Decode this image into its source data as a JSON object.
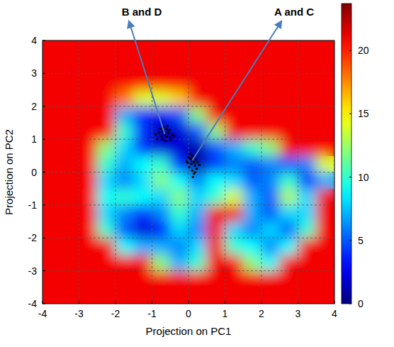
{
  "chart_data": {
    "type": "heatmap",
    "xlabel": "Projection on PC1",
    "ylabel": "Projection on PC2",
    "xlim": [
      -4,
      4
    ],
    "ylim": [
      -4,
      4
    ],
    "xticks": [
      -4,
      -3,
      -2,
      -1,
      0,
      1,
      2,
      3,
      4
    ],
    "yticks": [
      -4,
      -3,
      -2,
      -1,
      0,
      1,
      2,
      3,
      4
    ],
    "grid": true,
    "cells": {
      "x": [
        -3.75,
        -3.25,
        -2.75,
        -2.25,
        -1.75,
        -1.25,
        -0.75,
        -0.25,
        0.25,
        0.75,
        1.25,
        1.75,
        2.25,
        2.75,
        3.25,
        3.75
      ],
      "y": [
        -3.75,
        -3.25,
        -2.75,
        -2.25,
        -1.75,
        -1.25,
        -0.75,
        -0.25,
        0.25,
        0.75,
        1.25,
        1.75,
        2.25,
        2.75,
        3.25,
        3.75
      ],
      "values": [
        [
          21,
          21,
          21,
          21,
          21,
          21,
          21,
          21,
          21,
          21,
          21,
          21,
          21,
          21,
          21,
          21
        ],
        [
          21,
          21,
          21,
          21,
          21,
          21,
          21,
          21,
          21,
          21,
          21,
          21,
          21,
          21,
          21,
          21
        ],
        [
          21,
          21,
          21,
          21,
          21,
          21,
          12,
          7,
          10,
          21,
          21,
          12,
          9,
          21,
          21,
          21
        ],
        [
          21,
          21,
          21,
          21,
          9,
          7,
          7,
          6,
          8,
          21,
          10,
          9,
          6,
          9,
          21,
          21
        ],
        [
          21,
          21,
          21,
          10,
          5,
          2,
          3,
          8,
          6,
          21,
          8,
          6,
          8,
          5,
          10,
          21
        ],
        [
          21,
          21,
          21,
          8,
          6,
          4,
          6,
          10,
          7,
          21,
          21,
          7,
          5,
          8,
          8,
          21
        ],
        [
          21,
          21,
          21,
          9,
          10,
          9,
          8,
          12,
          8,
          10,
          14,
          7,
          5,
          13,
          8,
          21
        ],
        [
          21,
          21,
          21,
          8,
          6,
          8,
          12,
          9,
          6,
          9,
          8,
          5,
          6,
          10,
          4,
          7
        ],
        [
          21,
          21,
          21,
          10,
          7,
          9,
          10,
          4,
          0.5,
          4,
          6,
          5,
          6,
          5,
          6,
          14
        ],
        [
          21,
          21,
          21,
          12,
          8,
          4,
          2,
          2,
          1,
          5,
          7,
          10,
          12,
          21,
          21,
          21
        ],
        [
          21,
          21,
          21,
          21,
          10,
          4,
          1,
          2,
          5,
          12,
          21,
          21,
          21,
          21,
          21,
          21
        ],
        [
          21,
          21,
          21,
          21,
          7,
          4,
          3,
          5,
          12,
          21,
          21,
          21,
          21,
          21,
          21,
          21
        ],
        [
          21,
          21,
          21,
          21,
          18,
          14,
          14,
          16,
          21,
          21,
          21,
          21,
          21,
          21,
          21,
          21
        ],
        [
          21,
          21,
          21,
          21,
          21,
          21,
          21,
          21,
          21,
          21,
          21,
          21,
          21,
          21,
          21,
          21
        ],
        [
          21,
          21,
          21,
          21,
          21,
          21,
          21,
          21,
          21,
          21,
          21,
          21,
          21,
          21,
          21,
          21
        ],
        [
          21,
          21,
          21,
          21,
          21,
          21,
          21,
          21,
          21,
          21,
          21,
          21,
          21,
          21,
          21,
          21
        ]
      ]
    },
    "colorbar": {
      "range": [
        0,
        23.7
      ],
      "ticks": [
        0,
        5,
        10,
        15,
        20
      ]
    },
    "series": [
      {
        "type": "scatter",
        "color": "#000000",
        "marker": "circle",
        "x": [
          -0.65,
          -0.55,
          -0.75,
          -0.6,
          -0.7,
          -0.5,
          -0.8,
          -0.62,
          -0.45,
          -0.85,
          -0.58,
          -0.68,
          -0.72,
          -0.52,
          -0.9,
          -0.4,
          -0.66,
          -0.6,
          -0.78,
          -0.48
        ],
        "y": [
          1.15,
          1.2,
          1.1,
          1.3,
          1.25,
          1.05,
          1.2,
          0.95,
          1.15,
          1.0,
          1.4,
          1.35,
          1.0,
          1.28,
          1.15,
          1.1,
          1.18,
          1.08,
          1.32,
          0.98
        ]
      },
      {
        "type": "scatter",
        "color": "#000000",
        "marker": "circle",
        "x": [
          0.1,
          0.05,
          0.15,
          0.0,
          0.2,
          0.08,
          -0.05,
          0.12,
          0.18,
          0.02,
          0.25,
          0.1,
          0.15,
          0.05,
          0.22,
          0.12,
          -0.02,
          0.3,
          0.08,
          0.18
        ],
        "y": [
          0.35,
          0.4,
          0.3,
          0.45,
          0.38,
          0.25,
          0.32,
          0.5,
          0.2,
          0.15,
          0.3,
          0.05,
          -0.05,
          0.55,
          0.1,
          -0.15,
          0.28,
          0.22,
          0.42,
          0.0
        ]
      }
    ],
    "annotations": [
      {
        "text": "B and D",
        "x": -0.65,
        "y": 1.15
      },
      {
        "text": "A and C",
        "x": 0.1,
        "y": 0.35
      }
    ]
  }
}
